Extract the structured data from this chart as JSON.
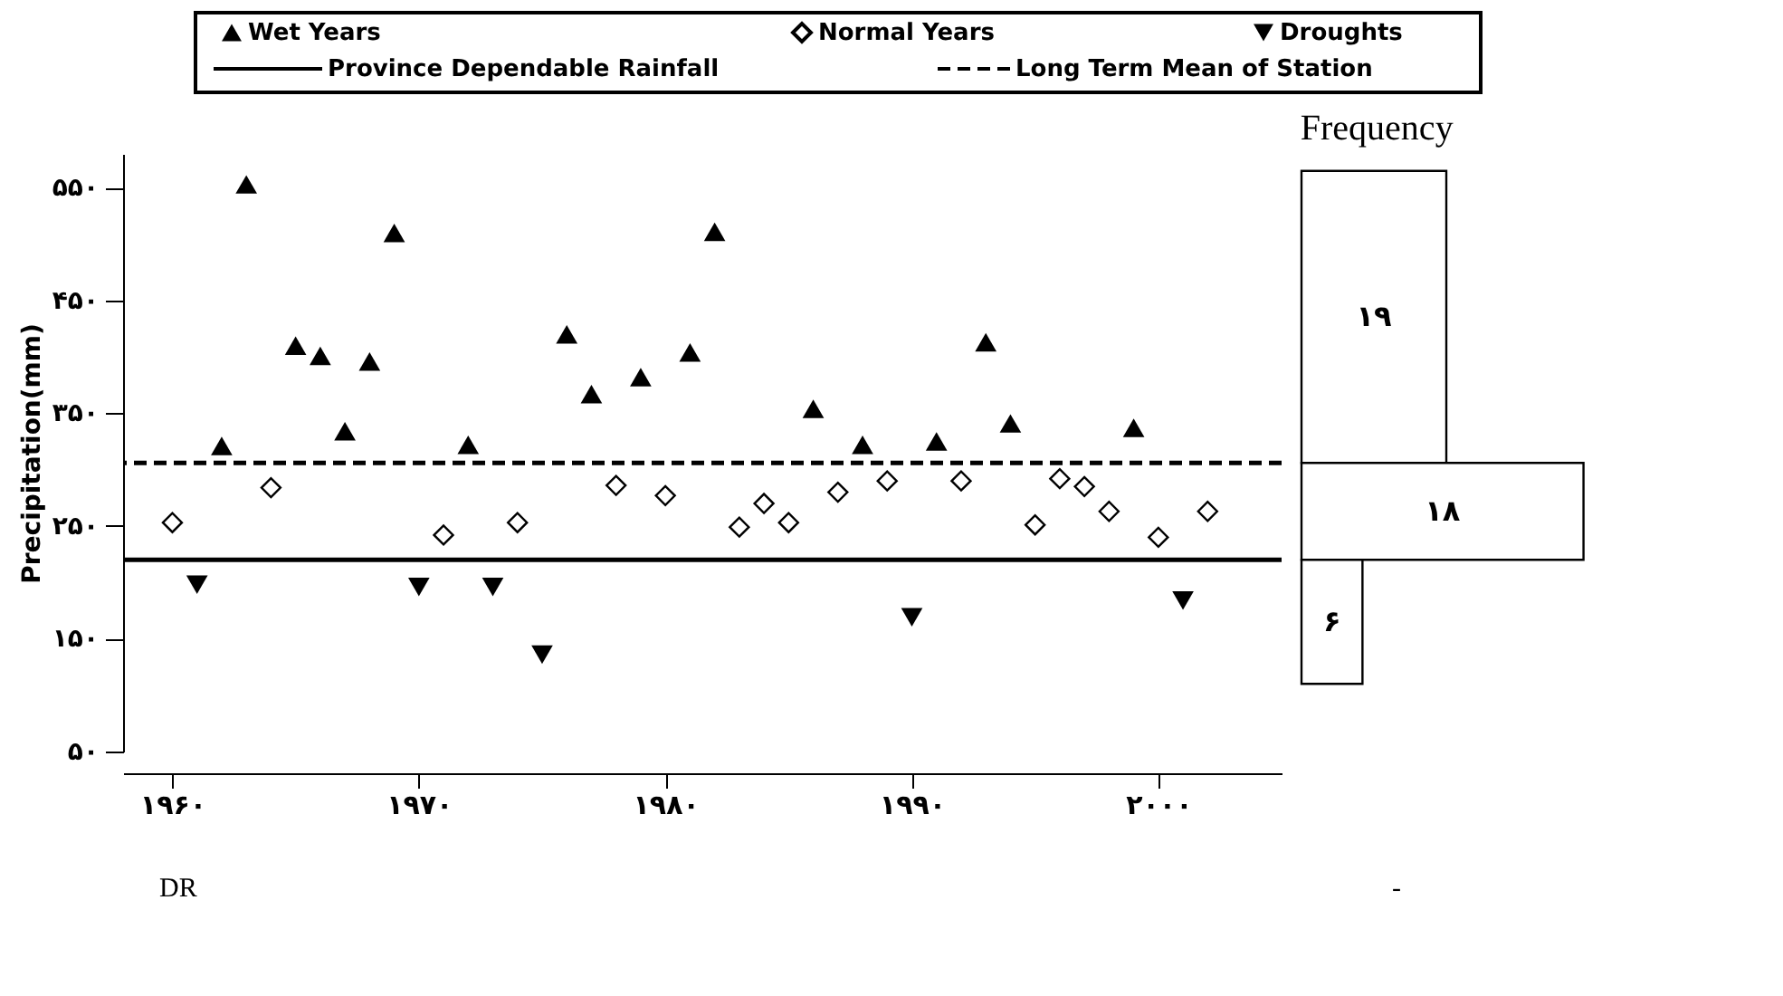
{
  "chart_data": [
    {
      "type": "scatter",
      "ylabel": "Precipitation(mm)",
      "xlim": [
        1958,
        2005
      ],
      "ylim": [
        50,
        580
      ],
      "xticks": [
        {
          "value": 1960,
          "label": "۱۹۶۰"
        },
        {
          "value": 1970,
          "label": "۱۹۷۰"
        },
        {
          "value": 1980,
          "label": "۱۹۸۰"
        },
        {
          "value": 1990,
          "label": "۱۹۹۰"
        },
        {
          "value": 2000,
          "label": "۲۰۰۰"
        }
      ],
      "yticks": [
        {
          "value": 50,
          "label": "۵۰"
        },
        {
          "value": 150,
          "label": "۱۵۰"
        },
        {
          "value": 250,
          "label": "۲۵۰"
        },
        {
          "value": 350,
          "label": "۳۵۰"
        },
        {
          "value": 450,
          "label": "۴۵۰"
        },
        {
          "value": 550,
          "label": "۵۵۰"
        }
      ],
      "grid": false,
      "legend": "top",
      "series": [
        {
          "name": "Wet Years",
          "color": "#000000",
          "marker": "triangle",
          "x": [
            1962,
            1963,
            1965,
            1966,
            1967,
            1968,
            1969,
            1972,
            1976,
            1977,
            1979,
            1981,
            1982,
            1986,
            1988,
            1991,
            1993,
            1994,
            1999
          ],
          "values": [
            321,
            553,
            410,
            401,
            334,
            396,
            510,
            322,
            420,
            367,
            382,
            404,
            511,
            354,
            322,
            325,
            413,
            341,
            337
          ]
        },
        {
          "name": "Normal Years",
          "color": "#000000",
          "marker": "diamond",
          "x": [
            1960,
            1964,
            1971,
            1974,
            1978,
            1980,
            1983,
            1984,
            1985,
            1987,
            1989,
            1992,
            1995,
            1996,
            1997,
            1998,
            2000,
            2002
          ],
          "values": [
            253,
            284,
            242,
            253,
            286,
            277,
            249,
            270,
            253,
            280,
            290,
            290,
            251,
            292,
            285,
            263,
            240,
            263
          ]
        },
        {
          "name": "Droughts",
          "color": "#000000",
          "marker": "triangle-down",
          "x": [
            1961,
            1970,
            1973,
            1975,
            1990,
            2001
          ],
          "values": [
            198,
            196,
            196,
            136,
            169,
            184
          ]
        }
      ],
      "ref_lines": [
        {
          "axis": "y",
          "value": 220,
          "label": "Province Dependable Rainfall",
          "line_style": "solid",
          "color": "#000000"
        },
        {
          "axis": "y",
          "value": 306,
          "label": "Long Term Mean of Station",
          "line_style": "dashed",
          "color": "#000000"
        }
      ],
      "annotations": [
        "DR",
        "-"
      ]
    },
    {
      "type": "other",
      "title": "Frequency",
      "categories": [
        null,
        null,
        null
      ],
      "values": [
        19,
        18,
        6
      ],
      "value_labels": [
        "۱۹",
        "۱۸",
        "۶"
      ]
    }
  ]
}
